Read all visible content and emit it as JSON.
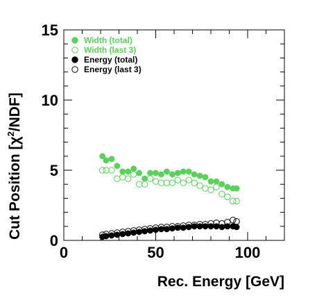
{
  "chart_data": {
    "type": "scatter",
    "title": "",
    "xlabel": "Rec. Energy [GeV]",
    "ylabel_parts": {
      "pre": "Cut Position [χ",
      "sup": "2",
      "post": "/NDF]"
    },
    "xlim": [
      0,
      120
    ],
    "ylim": [
      0,
      15
    ],
    "x_ticks": [
      "0",
      "50",
      "100"
    ],
    "y_ticks": [
      "0",
      "5",
      "10",
      "15"
    ],
    "legend_position": "top-left",
    "series": [
      {
        "name": "Width (total)",
        "color": "#5ad15a",
        "marker": "filled-circle",
        "x": [
          21,
          23,
          26,
          29,
          32,
          35,
          38,
          41,
          44,
          47,
          50,
          53,
          56,
          59,
          62,
          65,
          68,
          71,
          74,
          77,
          80,
          83,
          86,
          89,
          92,
          94
        ],
        "y": [
          6.0,
          5.7,
          5.8,
          5.3,
          4.9,
          4.9,
          5.1,
          4.8,
          4.4,
          4.8,
          4.8,
          4.7,
          4.9,
          4.7,
          4.8,
          4.9,
          4.9,
          4.7,
          4.6,
          4.5,
          4.2,
          4.2,
          4.0,
          3.8,
          3.7,
          3.7
        ]
      },
      {
        "name": "Width (last 3)",
        "color": "#5ad15a",
        "marker": "open-circle",
        "x": [
          21,
          23,
          26,
          29,
          32,
          35,
          38,
          41,
          44,
          47,
          50,
          53,
          56,
          59,
          62,
          65,
          68,
          71,
          74,
          77,
          80,
          83,
          86,
          89,
          92,
          94
        ],
        "y": [
          5.0,
          5.0,
          5.0,
          4.4,
          4.5,
          4.4,
          4.7,
          4.0,
          4.0,
          4.4,
          4.2,
          4.1,
          4.1,
          4.1,
          4.3,
          4.1,
          4.3,
          4.1,
          3.9,
          3.7,
          3.6,
          3.8,
          3.3,
          3.1,
          2.8,
          2.8
        ]
      },
      {
        "name": "Energy (total)",
        "color": "#000000",
        "marker": "filled-circle",
        "x": [
          21,
          23,
          26,
          29,
          32,
          35,
          38,
          41,
          44,
          47,
          50,
          53,
          56,
          59,
          62,
          65,
          68,
          71,
          74,
          77,
          80,
          83,
          86,
          89,
          92,
          94
        ],
        "y": [
          0.25,
          0.3,
          0.35,
          0.4,
          0.45,
          0.5,
          0.55,
          0.6,
          0.65,
          0.7,
          0.75,
          0.8,
          0.8,
          0.85,
          0.9,
          0.9,
          0.95,
          1.0,
          1.0,
          1.0,
          1.0,
          1.0,
          0.95,
          1.0,
          1.0,
          0.95
        ]
      },
      {
        "name": "Energy (last 3)",
        "color": "#000000",
        "marker": "open-circle",
        "x": [
          21,
          23,
          26,
          29,
          32,
          35,
          38,
          41,
          44,
          47,
          50,
          53,
          56,
          59,
          62,
          65,
          68,
          71,
          74,
          77,
          80,
          83,
          86,
          89,
          92,
          94
        ],
        "y": [
          0.4,
          0.45,
          0.5,
          0.55,
          0.6,
          0.65,
          0.7,
          0.75,
          0.8,
          0.85,
          0.9,
          0.95,
          0.95,
          1.0,
          1.0,
          1.05,
          1.1,
          1.1,
          1.15,
          1.15,
          1.2,
          1.25,
          1.2,
          1.3,
          1.45,
          1.35
        ]
      }
    ]
  }
}
